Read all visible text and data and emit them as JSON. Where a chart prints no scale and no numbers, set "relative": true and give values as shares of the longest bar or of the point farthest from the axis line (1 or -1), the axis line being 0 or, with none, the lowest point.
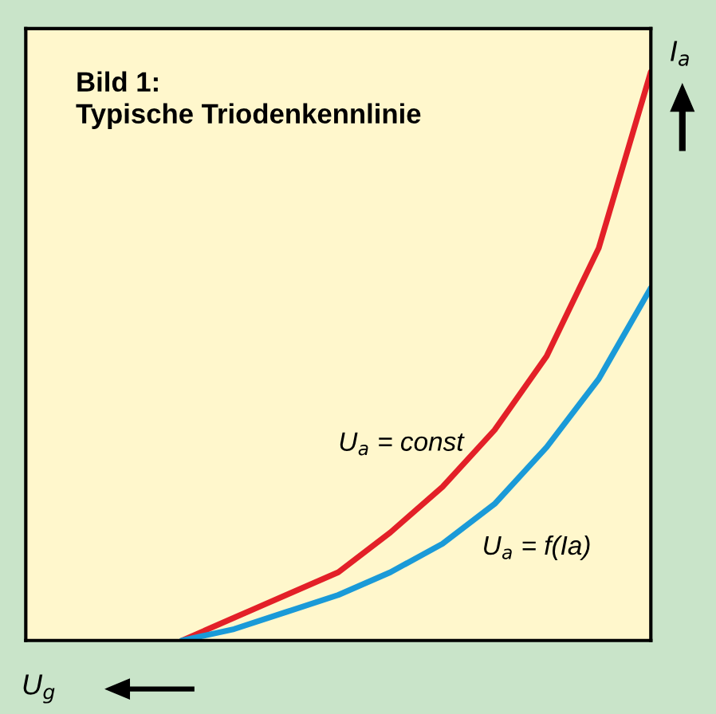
{
  "chart_data": {
    "type": "line",
    "title": "Bild 1:\nTypische Triodenkennlinie",
    "xlabel": "U$_{g}$",
    "ylabel": "I$_{a}$",
    "relative": true,
    "legend": false,
    "marker": "none",
    "line_style": "solid",
    "categories": [
      null,
      null,
      null,
      null,
      null,
      null,
      null,
      null,
      null,
      null,
      null,
      null,
      null
    ],
    "series": [
      {
        "name": "U$_{a}$ = const",
        "color": "#e32028",
        "values": [
          null,
          null,
          null,
          0.0,
          0.04,
          0.08,
          0.12,
          0.19,
          0.27,
          0.37,
          0.5,
          0.69,
          1.0
        ]
      },
      {
        "name": "U$_{a}$ = f(Ia)",
        "color": "#1a9ad8",
        "values": [
          null,
          null,
          null,
          0.0,
          0.02,
          0.05,
          0.08,
          0.12,
          0.17,
          0.24,
          0.34,
          0.46,
          0.62
        ]
      }
    ]
  }
}
